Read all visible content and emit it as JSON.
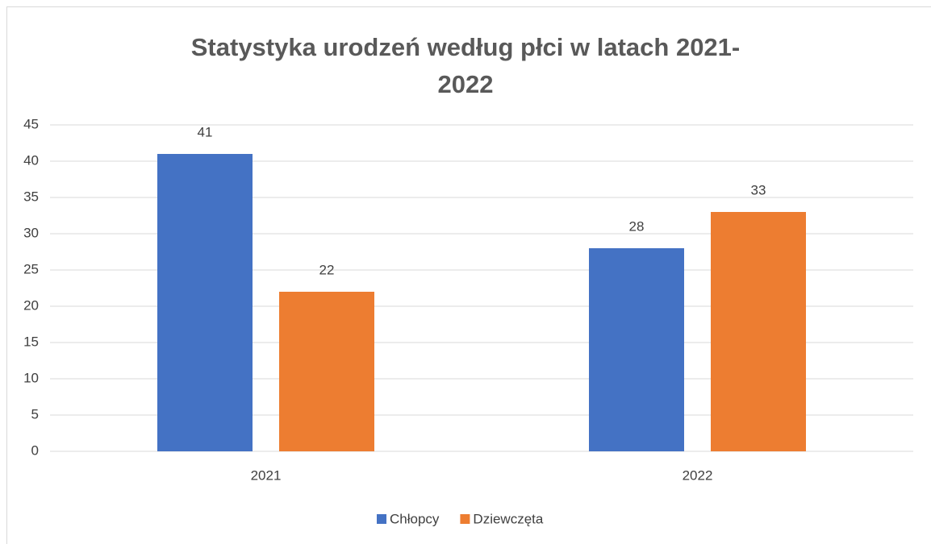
{
  "chart_data": {
    "type": "bar",
    "title": "Statystyka urodzeń według płci w latach 2021-2022",
    "categories": [
      "2021",
      "2022"
    ],
    "series": [
      {
        "name": "Chłopcy",
        "color": "#4472c4",
        "values": [
          41,
          28
        ]
      },
      {
        "name": "Dziewczęta",
        "color": "#ed7d31",
        "values": [
          22,
          33
        ]
      }
    ],
    "ylim": [
      0,
      45
    ],
    "yticks": [
      0,
      5,
      10,
      15,
      20,
      25,
      30,
      35,
      40,
      45
    ],
    "grid": true,
    "legend": "bottom"
  }
}
